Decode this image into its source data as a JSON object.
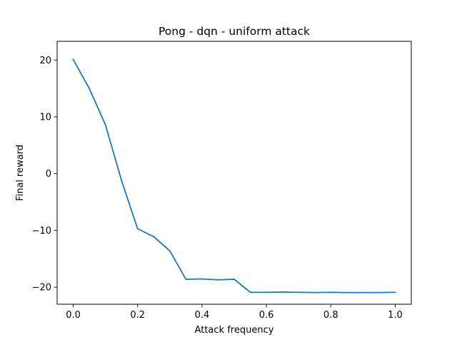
{
  "chart_data": {
    "type": "line",
    "title": "Pong - dqn - uniform attack",
    "xlabel": "Attack frequency",
    "ylabel": "Final reward",
    "xlim": [
      -0.05,
      1.05
    ],
    "ylim": [
      -23,
      23.3
    ],
    "xticks": [
      0.0,
      0.2,
      0.4,
      0.6,
      0.8,
      1.0
    ],
    "xtick_labels": [
      "0.0",
      "0.2",
      "0.4",
      "0.6",
      "0.8",
      "1.0"
    ],
    "yticks": [
      -20,
      -10,
      0,
      10,
      20
    ],
    "ytick_labels": [
      "−20",
      "−10",
      "0",
      "10",
      "20"
    ],
    "grid": false,
    "legend": null,
    "series": [
      {
        "color": "#1f77b4",
        "x": [
          0.0,
          0.05,
          0.1,
          0.15,
          0.2,
          0.25,
          0.3,
          0.35,
          0.4,
          0.45,
          0.5,
          0.55,
          0.6,
          0.65,
          0.7,
          0.75,
          0.8,
          0.85,
          0.9,
          0.95,
          1.0
        ],
        "y": [
          20.1,
          15.0,
          8.6,
          -1.2,
          -9.7,
          -11.1,
          -13.6,
          -18.6,
          -18.55,
          -18.7,
          -18.6,
          -20.9,
          -20.9,
          -20.85,
          -20.9,
          -20.95,
          -20.9,
          -20.95,
          -20.95,
          -20.95,
          -20.9
        ]
      }
    ]
  }
}
